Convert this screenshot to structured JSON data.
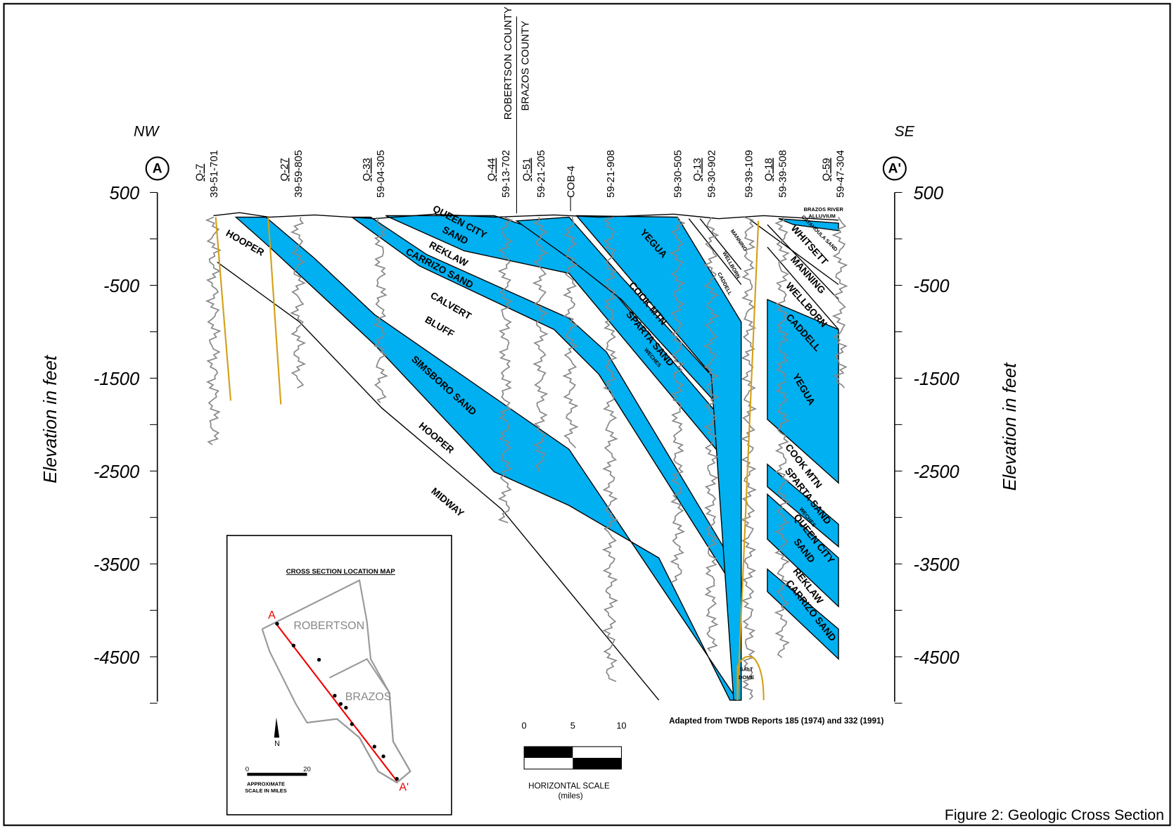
{
  "header": {
    "left_direction": "NW",
    "right_direction": "SE",
    "left_end": "A",
    "right_end": "A'"
  },
  "axis": {
    "label": "Elevation in feet",
    "ticks": [
      500,
      -500,
      -1500,
      -2500,
      -3500,
      -4500
    ]
  },
  "counties": [
    "ROBERTSON COUNTY",
    "BRAZOS COUNTY"
  ],
  "wells": [
    {
      "id": "Q-7",
      "number": "39-51-701"
    },
    {
      "id": "Q-27",
      "number": "39-59-805"
    },
    {
      "id": "Q-33",
      "number": "59-04-305"
    },
    {
      "id": "Q-44",
      "number": "59-13-702"
    },
    {
      "id": "Q-51",
      "number": "59-21-205"
    },
    {
      "number": "COB-4"
    },
    {
      "number": "59-21-908"
    },
    {
      "number": "59-30-505"
    },
    {
      "id": "Q-13",
      "number": "59-30-902"
    },
    {
      "number": "59-39-109"
    },
    {
      "id": "Q-18",
      "number": "59-39-508"
    },
    {
      "id": "Q-59",
      "number": "59-47-304"
    }
  ],
  "formations": [
    "HOOPER",
    "QUEEN CITY",
    "SAND",
    "REKLAW",
    "CARRIZO SAND",
    "CALVERT",
    "BLUFF",
    "SIMSBORO SAND",
    "HOOPER",
    "MIDWAY",
    "YEGUA",
    "COOK MTN",
    "SPARTA SAND",
    "WECHES",
    "MANNING",
    "WELLBORN",
    "CADDELL",
    "BRAZOS RIVER",
    "ALLUVIUM",
    "CATAHOULA SAND",
    "WHITSETT",
    "MANNING",
    "WELLBORN",
    "CADDELL",
    "YEGUA",
    "COOK MTN",
    "SPARTA SAND",
    "WECHES",
    "QUEEN CITY",
    "SAND",
    "REKLAW",
    "CARRIZO SAND",
    "SALT",
    "DOME"
  ],
  "inset_map": {
    "title": "CROSS SECTION LOCATION MAP",
    "counties": [
      "ROBERTSON",
      "BRAZOS"
    ],
    "start": "A",
    "end": "A'",
    "north": "N",
    "scale": [
      0,
      20
    ],
    "scale_caption": [
      "APPROXIMATE",
      "SCALE IN MILES"
    ]
  },
  "horizontal_scale": {
    "ticks": [
      0,
      5,
      10
    ],
    "caption": "HORIZONTAL SCALE",
    "unit": "(miles)"
  },
  "source": "Adapted from TWDB Reports 185 (1974) and 332 (1991)",
  "caption": "Figure 2: Geologic Cross Section"
}
